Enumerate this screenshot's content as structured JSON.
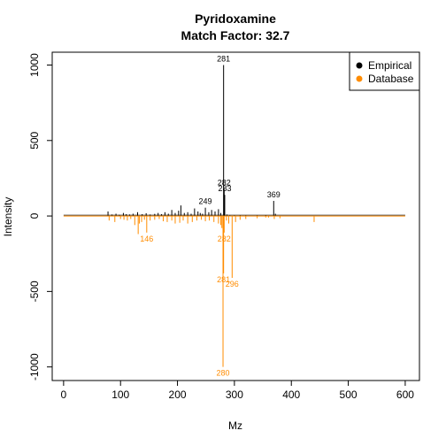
{
  "chart_data": {
    "type": "bar",
    "title_line1": "Pyridoxamine",
    "title_line2": "Match Factor: 32.7",
    "xlabel": "Mz",
    "ylabel": "Intensity",
    "xlim": [
      -20,
      625
    ],
    "ylim": [
      -1090,
      1085
    ],
    "x_ticks": [
      0,
      100,
      200,
      300,
      400,
      500,
      600
    ],
    "y_ticks": [
      -1000,
      -500,
      0,
      500,
      1000
    ],
    "grid": false,
    "legend_position": "top-right",
    "legend": [
      {
        "label": "Empirical",
        "color": "#000000"
      },
      {
        "label": "Database",
        "color": "#ff8c00"
      }
    ],
    "colors": {
      "empirical": "#000000",
      "database": "#ff8c00"
    },
    "series": [
      {
        "name": "Empirical",
        "mz": [
          78,
          85,
          92,
          98,
          105,
          110,
          116,
          122,
          130,
          138,
          145,
          152,
          160,
          166,
          172,
          178,
          184,
          190,
          196,
          202,
          206,
          212,
          218,
          224,
          230,
          236,
          240,
          244,
          249,
          255,
          260,
          266,
          272,
          276,
          281,
          282,
          283,
          287,
          292,
          300,
          310,
          320,
          340,
          355,
          369,
          372
        ],
        "intensity": [
          30,
          10,
          15,
          8,
          20,
          12,
          10,
          15,
          25,
          12,
          18,
          10,
          14,
          20,
          12,
          25,
          15,
          40,
          20,
          35,
          70,
          20,
          25,
          15,
          50,
          30,
          20,
          15,
          55,
          25,
          40,
          30,
          45,
          20,
          1000,
          180,
          140,
          10,
          5,
          5,
          5,
          4,
          4,
          6,
          100,
          15
        ]
      },
      {
        "name": "Database",
        "mz": [
          80,
          90,
          100,
          106,
          112,
          118,
          125,
          131,
          133,
          137,
          142,
          146,
          152,
          160,
          168,
          175,
          182,
          190,
          196,
          204,
          210,
          218,
          226,
          234,
          242,
          249,
          256,
          264,
          272,
          276,
          278,
          280,
          281,
          282,
          286,
          290,
          296,
          302,
          310,
          320,
          340,
          355,
          360,
          370,
          380,
          440
        ],
        "intensity": [
          -30,
          -40,
          -20,
          -25,
          -30,
          -20,
          -60,
          -120,
          -50,
          -40,
          -25,
          -110,
          -30,
          -25,
          -20,
          -35,
          -40,
          -30,
          -50,
          -45,
          -30,
          -50,
          -40,
          -30,
          -25,
          -35,
          -30,
          -40,
          -50,
          -60,
          -80,
          -1000,
          -380,
          -110,
          -30,
          -50,
          -410,
          -40,
          -25,
          -20,
          -15,
          -10,
          -10,
          -20,
          -15,
          -40
        ]
      }
    ],
    "peak_labels": [
      {
        "series": "Empirical",
        "mz": 281,
        "intensity": 1000,
        "text": "281"
      },
      {
        "series": "Empirical",
        "mz": 282,
        "intensity": 180,
        "text": "282"
      },
      {
        "series": "Empirical",
        "mz": 283,
        "intensity": 140,
        "text": "283"
      },
      {
        "series": "Empirical",
        "mz": 249,
        "intensity": 55,
        "text": "249"
      },
      {
        "series": "Empirical",
        "mz": 369,
        "intensity": 100,
        "text": "369"
      },
      {
        "series": "Database",
        "mz": 146,
        "intensity": -110,
        "text": "146"
      },
      {
        "series": "Database",
        "mz": 282,
        "intensity": -110,
        "text": "282"
      },
      {
        "series": "Database",
        "mz": 281,
        "intensity": -380,
        "text": "281"
      },
      {
        "series": "Database",
        "mz": 296,
        "intensity": -410,
        "text": "296"
      },
      {
        "series": "Database",
        "mz": 280,
        "intensity": -1000,
        "text": "280"
      }
    ]
  }
}
